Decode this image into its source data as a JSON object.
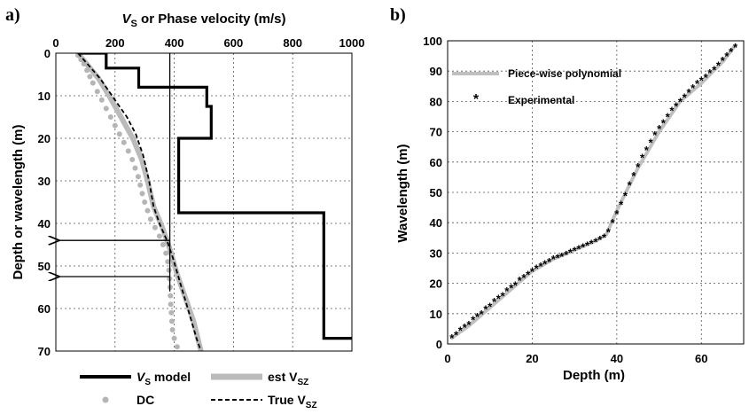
{
  "chart_data": [
    {
      "panel_label": "a)",
      "type": "line",
      "title": "",
      "xlabel": {
        "main": "V",
        "sub": "S",
        "rest": " or Phase velocity (m/s)"
      },
      "ylabel": "Depth or wavelength (m)",
      "x_axis_position": "top",
      "xlim": [
        0,
        1000
      ],
      "ylim": [
        0,
        70
      ],
      "y_inverted": true,
      "xticks": [
        "0",
        "200",
        "400",
        "600",
        "800",
        "1000"
      ],
      "yticks": [
        "0",
        "10",
        "20",
        "30",
        "40",
        "50",
        "60",
        "70"
      ],
      "grid": true,
      "series": [
        {
          "name": "V_S model",
          "style": "step",
          "color": "#000000",
          "points": [
            [
              80,
              0
            ],
            [
              170,
              0
            ],
            [
              170,
              3.5
            ],
            [
              280,
              3.5
            ],
            [
              280,
              8
            ],
            [
              510,
              8
            ],
            [
              510,
              12.5
            ],
            [
              525,
              12.5
            ],
            [
              525,
              20
            ],
            [
              415,
              20
            ],
            [
              415,
              37.5
            ],
            [
              905,
              37.5
            ],
            [
              905,
              67
            ],
            [
              1000,
              67
            ]
          ]
        },
        {
          "name": "est V_SZ",
          "style": "thick",
          "color": "#bbbbbb",
          "points": [
            [
              80,
              0.5
            ],
            [
              110,
              3
            ],
            [
              145,
              6
            ],
            [
              180,
              10
            ],
            [
              220,
              15
            ],
            [
              260,
              20
            ],
            [
              290,
              25
            ],
            [
              310,
              30
            ],
            [
              330,
              36
            ],
            [
              360,
              41
            ],
            [
              385,
              46
            ],
            [
              410,
              52
            ],
            [
              440,
              58
            ],
            [
              465,
              63
            ],
            [
              490,
              70
            ]
          ]
        },
        {
          "name": "DC",
          "style": "dots",
          "color": "#b5b5b5",
          "points": [
            [
              75,
              0.5
            ],
            [
              85,
              1.5
            ],
            [
              95,
              2.5
            ],
            [
              105,
              4
            ],
            [
              115,
              5.5
            ],
            [
              125,
              7
            ],
            [
              140,
              9
            ],
            [
              155,
              11
            ],
            [
              170,
              13
            ],
            [
              185,
              15
            ],
            [
              200,
              17
            ],
            [
              215,
              19
            ],
            [
              230,
              21
            ],
            [
              245,
              23
            ],
            [
              258,
              25
            ],
            [
              268,
              27
            ],
            [
              278,
              29
            ],
            [
              285,
              31
            ],
            [
              292,
              33
            ],
            [
              300,
              35
            ],
            [
              310,
              37
            ],
            [
              320,
              39
            ],
            [
              335,
              41
            ],
            [
              350,
              43
            ],
            [
              362,
              45
            ],
            [
              372,
              47
            ],
            [
              378,
              49
            ],
            [
              382,
              51
            ],
            [
              384,
              53
            ],
            [
              386,
              55
            ],
            [
              387,
              57
            ],
            [
              388,
              59
            ],
            [
              390,
              61
            ],
            [
              392,
              63
            ],
            [
              394,
              65
            ],
            [
              400,
              67
            ],
            [
              410,
              69
            ]
          ]
        },
        {
          "name": "True V_SZ",
          "style": "dashed",
          "color": "#000000",
          "points": [
            [
              75,
              0
            ],
            [
              100,
              2
            ],
            [
              125,
              4
            ],
            [
              150,
              6
            ],
            [
              180,
              9
            ],
            [
              210,
              12
            ],
            [
              240,
              15
            ],
            [
              270,
              19
            ],
            [
              295,
              24
            ],
            [
              315,
              30
            ],
            [
              330,
              36
            ],
            [
              350,
              40
            ],
            [
              375,
              44
            ],
            [
              395,
              48
            ],
            [
              420,
              54
            ],
            [
              450,
              61
            ],
            [
              475,
              67
            ],
            [
              490,
              70
            ]
          ]
        }
      ],
      "annotations": {
        "vertical_line_x": 385,
        "arrows_y": [
          44,
          52.5
        ]
      },
      "legend": {
        "placement": "bottom",
        "entries": [
          {
            "key": "vs_model",
            "main": "V",
            "sub": "S",
            "rest": " model"
          },
          {
            "key": "est_vsz",
            "main": "est  V",
            "sub": "SZ",
            "rest": ""
          },
          {
            "key": "dc",
            "main": "DC",
            "sub": "",
            "rest": ""
          },
          {
            "key": "true_vsz",
            "main": "True V",
            "sub": "SZ",
            "rest": ""
          }
        ]
      }
    },
    {
      "panel_label": "b)",
      "type": "line",
      "title": "",
      "xlabel": "Depth (m)",
      "ylabel": "Wavelength (m)",
      "xlim": [
        0,
        70
      ],
      "ylim": [
        0,
        100
      ],
      "xticks": [
        "0",
        "20",
        "40",
        "60"
      ],
      "yticks": [
        "0",
        "10",
        "20",
        "30",
        "40",
        "50",
        "60",
        "70",
        "80",
        "90",
        "100"
      ],
      "grid": true,
      "series": [
        {
          "name": "Piece-wise polynomial",
          "style": "thick",
          "color": "#c0c0c0",
          "points": [
            [
              1,
              2
            ],
            [
              5,
              6
            ],
            [
              10,
              12
            ],
            [
              15,
              18
            ],
            [
              20,
              24
            ],
            [
              25,
              28
            ],
            [
              30,
              31
            ],
            [
              35,
              34
            ],
            [
              37.5,
              36
            ],
            [
              40,
              44
            ],
            [
              45,
              58
            ],
            [
              50,
              70
            ],
            [
              55,
              80
            ],
            [
              60,
              86
            ],
            [
              65,
              93
            ],
            [
              68,
              98.5
            ]
          ]
        },
        {
          "name": "Experimental",
          "style": "stars",
          "color": "#333333",
          "points": [
            [
              1,
              2
            ],
            [
              2,
              3
            ],
            [
              3,
              4.5
            ],
            [
              4,
              5.5
            ],
            [
              5,
              6.5
            ],
            [
              6,
              8
            ],
            [
              7,
              9
            ],
            [
              8,
              10
            ],
            [
              9,
              11.5
            ],
            [
              10,
              12.5
            ],
            [
              11,
              14
            ],
            [
              12,
              15
            ],
            [
              13,
              16
            ],
            [
              14,
              17.5
            ],
            [
              15,
              18.5
            ],
            [
              16,
              19.5
            ],
            [
              17,
              21
            ],
            [
              18,
              22
            ],
            [
              19,
              23
            ],
            [
              20,
              24
            ],
            [
              21,
              25
            ],
            [
              22,
              25.8
            ],
            [
              23,
              26.5
            ],
            [
              24,
              27.2
            ],
            [
              25,
              28
            ],
            [
              26,
              28.5
            ],
            [
              27,
              29
            ],
            [
              28,
              29.6
            ],
            [
              29,
              30.2
            ],
            [
              30,
              30.8
            ],
            [
              31,
              31.4
            ],
            [
              32,
              32
            ],
            [
              33,
              32.6
            ],
            [
              34,
              33.2
            ],
            [
              35,
              33.8
            ],
            [
              36,
              34.5
            ],
            [
              37,
              35.3
            ],
            [
              38,
              37
            ],
            [
              39,
              40
            ],
            [
              40,
              43
            ],
            [
              41,
              46
            ],
            [
              42,
              49
            ],
            [
              43,
              52.5
            ],
            [
              44,
              55.5
            ],
            [
              45,
              58.5
            ],
            [
              46,
              61.5
            ],
            [
              47,
              64
            ],
            [
              48,
              66.5
            ],
            [
              49,
              69
            ],
            [
              50,
              71
            ],
            [
              51,
              73
            ],
            [
              52,
              75
            ],
            [
              53,
              77
            ],
            [
              54,
              78.5
            ],
            [
              55,
              80
            ],
            [
              56,
              81.5
            ],
            [
              57,
              83
            ],
            [
              58,
              84.5
            ],
            [
              59,
              86
            ],
            [
              60,
              87
            ],
            [
              61,
              88
            ],
            [
              62,
              89.5
            ],
            [
              63,
              90.5
            ],
            [
              64,
              92
            ],
            [
              65,
              93.5
            ],
            [
              66,
              95
            ],
            [
              67,
              96.5
            ],
            [
              68,
              98
            ]
          ]
        }
      ],
      "legend": {
        "placement": "top-left",
        "entries": [
          {
            "key": "poly",
            "label": "Piece-wise polynomial"
          },
          {
            "key": "exp",
            "label": "Experimental"
          }
        ]
      }
    }
  ]
}
